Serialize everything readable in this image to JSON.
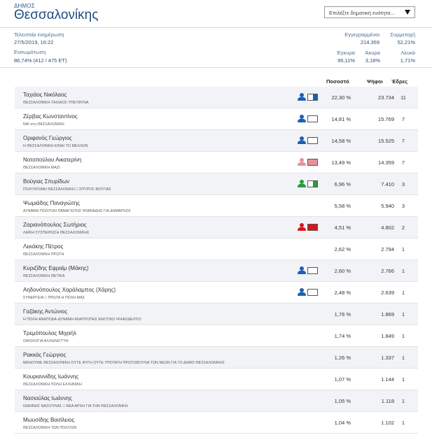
{
  "header": {
    "label": "ΔΗΜΟΣ",
    "title": "Θεσσαλονίκης",
    "select_placeholder": "Επιλέξτε δημοτική ενότητα..."
  },
  "stats": {
    "last_update_label": "Τελευταία ενημέρωση",
    "last_update_value": "27/5/2019, 16:22",
    "integration_label": "Ενσωμάτωση",
    "integration_value": "86,74% (412 / 475 ΕΤ)",
    "registered_label": "Εγγεγραμμένοι",
    "registered_value": "214.359",
    "turnout_label": "Συμμετοχή",
    "turnout_value": "52,21%",
    "valid_label": "Έγκυρα",
    "valid_value": "95,11%",
    "invalid_label": "Άκυρα",
    "invalid_value": "3,18%",
    "blank_label": "Λευκά",
    "blank_value": "1,71%"
  },
  "table": {
    "col_percent": "Ποσοστό",
    "col_votes": "Ψήφοι",
    "col_seats": "Έδρες"
  },
  "colors": {
    "blue": "#1c5eb5",
    "pink": "#e8919d",
    "green": "#2c9a3d",
    "red": "#d9151c"
  },
  "candidates": [
    {
      "name": "Ταχιάος Νικόλαος",
      "party": "ΘΕΣΣΑΛΟΝΙΚΗ-ΤΑΧΙΑΟΣ-ΥΠΕΥΘΥΝΑ",
      "percent": "22,30 %",
      "votes": "23.734",
      "seats": "11",
      "icon_color": "#1c5eb5",
      "flag_fill": 0.5
    },
    {
      "name": "Ζέρβας Κωνσταντίνος",
      "party": "ΝΑΙ στη ΘΕΣΣΑΛΟΝΙΚΗ",
      "percent": "14,81 %",
      "votes": "15.769",
      "seats": "7",
      "icon_color": "#1c5eb5",
      "flag_fill": 0
    },
    {
      "name": "Οριφανός Γεώργιος",
      "party": "Η ΘΕΣΣΑΛΟΝΙΚΗ ΕΙΝΑΙ ΤΟ ΜΕΛΛΟΝ",
      "percent": "14,58 %",
      "votes": "15.525",
      "seats": "7",
      "icon_color": "#1c5eb5",
      "flag_fill": 0
    },
    {
      "name": "Νοτοπούλου Αικατερίνη",
      "party": "ΘΕΣΣΑΛΟΝΙΚΗ ΜΑΖΙ",
      "percent": "13,49 %",
      "votes": "14.359",
      "seats": "7",
      "icon_color": "#e8919d",
      "flag_fill": 1
    },
    {
      "name": "Βούγιας Σπυρίδων",
      "party": "ΠΟΛΥΧΡΩΜΗ ΘΕΣΣΑΛΟΝΙΚΗ □ ΣΠΥΡΟΣ ΒΟΥΓΙΑΣ",
      "percent": "6,96 %",
      "votes": "7.410",
      "seats": "3",
      "icon_color": "#2c9a3d",
      "flag_fill": 0.5
    },
    {
      "name": "Ψωμιάδης Παναγιώτης",
      "party": "ΔΥΝΑΜΗ ΠΟΛΙΤΩΝ ΠΑΝΑΓΙΩΤΗΣ ΨΩΜΙΑΔΗΣ ΓΙΑ ΔΗΜΑΡΧΟΣ",
      "percent": "5,58 %",
      "votes": "5.940",
      "seats": "3",
      "icon_color": "",
      "flag_fill": 0
    },
    {
      "name": "Ζαριανόπουλος Σωτήριος",
      "party": "ΛΑΪΚΗ ΣΥΣΠΕΙΡΩΣΗ ΘΕΣΣΑΛΟΝΙΚΗΣ",
      "percent": "4,51 %",
      "votes": "4.802",
      "seats": "2",
      "icon_color": "#d9151c",
      "flag_fill": 1
    },
    {
      "name": "Λεκάκης Πέτρος",
      "party": "ΘΕΣΣΑΛΟΝΙΚΗ ΠΡΩΤΗ",
      "percent": "2,62 %",
      "votes": "2.794",
      "seats": "1",
      "icon_color": "",
      "flag_fill": 0
    },
    {
      "name": "Κυριζίδης Εφραίμ (Μάκης)",
      "party": "ΘΕΣΣΑΛΟΝΙΚΗ ΘΕΤΙΚΑ",
      "percent": "2,60 %",
      "votes": "2.766",
      "seats": "1",
      "icon_color": "#1c5eb5",
      "flag_fill": 0
    },
    {
      "name": "Αηδονόπουλος Χαράλαμπος (Χάρης)",
      "party": "ΣΥΝΕΡΓΕΙΑ □ ΠΡΩΤΑ Η ΠΟΛΗ ΜΑΣ",
      "percent": "2,48 %",
      "votes": "2.639",
      "seats": "1",
      "icon_color": "#1c5eb5",
      "flag_fill": 0
    },
    {
      "name": "Γαζάκης Αντώνιος",
      "party": "Η ΠΟΛΗ ΑΝΑΠΟΔΑ-ΔΥΝΑΜΗ ΑΝΑΤΡΟΠΗΣ ΕΝΟΤΙΚΟ ΨΗΦΟΔΕΛΤΙΟ",
      "percent": "1,76 %",
      "votes": "1.869",
      "seats": "1",
      "icon_color": "",
      "flag_fill": 0
    },
    {
      "name": "Τρεμόπουλος Μιχαήλ",
      "party": "ΟΙΚΟΛΟΓΙΑ ΑΛΛΗΛΕΓΓΥΗ",
      "percent": "1,74 %",
      "votes": "1.849",
      "seats": "1",
      "icon_color": "",
      "flag_fill": 0
    },
    {
      "name": "Ρακκάς Γεώργιος",
      "party": "ΜΕΝΟΥΜΕ ΘΕΣΣΑΛΟΝΙΚΗ ΟΥΤΕ ΦΥΓΗ ΟΥΤΕ ΥΠΟΤΑΓΗ ΠΡΩΤΟΒΟΥΛΙΑ ΤΩΝ ΝΕΩΝ ΓΙΑ ΤΟ ΔΗΜΟ ΘΕΣΣΑΛΟΝΙΚΗΣ",
      "percent": "1,26 %",
      "votes": "1.337",
      "seats": "1",
      "icon_color": "",
      "flag_fill": 0
    },
    {
      "name": "Κουριαννίδης Ιωάννης",
      "party": "ΘΕΣΣΑΛΟΝΙΚΗ ΠΟΛΗ ΕΛΛΗΝΙΚΗ",
      "percent": "1,07 %",
      "votes": "1.144",
      "seats": "1",
      "icon_color": "",
      "flag_fill": 0
    },
    {
      "name": "Νασιούλας Ιωάννης",
      "party": "ΙΩΑΝΝΗΣ ΝΑΣΙΟΥΛΑΣ □ ΝΕΑ ΑΡΧΗ ΓΙΑ ΤΗΝ ΘΕΣΣΑΛΟΝΙΚΗ",
      "percent": "1,05 %",
      "votes": "1.118",
      "seats": "1",
      "icon_color": "",
      "flag_fill": 0
    },
    {
      "name": "Μωυσίδης Βασίλειος",
      "party": "ΘΕΣΣΑΛΟΝΙΚΗ ΤΩΝ ΠΟΛΙΤΩΝ",
      "percent": "1,04 %",
      "votes": "1.102",
      "seats": "1",
      "icon_color": "",
      "flag_fill": 0
    }
  ]
}
